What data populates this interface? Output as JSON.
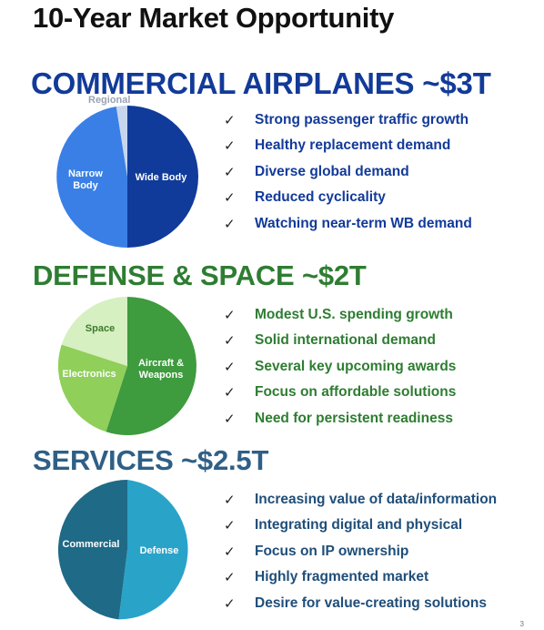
{
  "title": "10-Year Market Opportunity",
  "sections": [
    {
      "heading": "COMMERCIAL AIRPLANES  ~$3T",
      "color": "#123a99",
      "pie": {
        "slices": [
          {
            "label": "Wide Body",
            "share": 0.5,
            "color": "#103b9a",
            "label_color": "#ffffff"
          },
          {
            "label": "Narrow Body",
            "share": 0.475,
            "color": "#3a7fe6",
            "label_color": "#ffffff"
          },
          {
            "label": "Regional",
            "share": 0.025,
            "color": "#c7d6ef",
            "label_color": "#9aa3b3"
          }
        ]
      },
      "bullets": [
        "Strong passenger traffic growth",
        "Healthy replacement demand",
        "Diverse global demand",
        "Reduced cyclicality",
        "Watching near-term WB demand"
      ]
    },
    {
      "heading": "DEFENSE & SPACE  ~$2T",
      "color": "#2e7d32",
      "pie": {
        "slices": [
          {
            "label": "Aircraft & Weapons",
            "share": 0.55,
            "color": "#3e9b3e",
            "label_color": "#ffffff"
          },
          {
            "label": "Electronics",
            "share": 0.3,
            "color": "#8fcf5a",
            "label_color": "#ffffff"
          },
          {
            "label": "Space",
            "share": 0.15,
            "color": "#d6f0c1",
            "label_color": "#3d7a2c"
          }
        ]
      },
      "bullets": [
        "Modest U.S. spending growth",
        "Solid international demand",
        "Several key upcoming awards",
        "Focus on affordable solutions",
        "Need for persistent readiness"
      ]
    },
    {
      "heading": "SERVICES  ~$2.5T",
      "color": "#2f5f86",
      "pie": {
        "slices": [
          {
            "label": "Defense",
            "share": 0.52,
            "color": "#2aa3c9",
            "label_color": "#ffffff"
          },
          {
            "label": "Commercial",
            "share": 0.48,
            "color": "#1f6a86",
            "label_color": "#ffffff"
          }
        ]
      },
      "bullets": [
        "Increasing value of data/information",
        "Integrating digital and physical",
        "Focus on IP ownership",
        "Highly fragmented market",
        "Desire for value-creating solutions"
      ]
    }
  ],
  "check_glyph": "✓",
  "page_number": "3"
}
